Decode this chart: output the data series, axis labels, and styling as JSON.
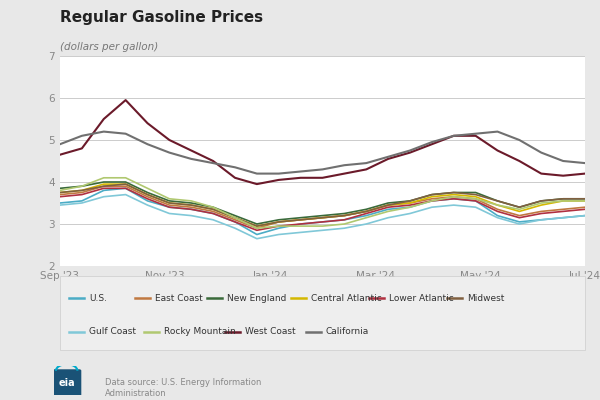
{
  "title": "Regular Gasoline Prices",
  "ylabel": "(dollars per gallon)",
  "ylim": [
    2,
    7
  ],
  "yticks": [
    2,
    3,
    4,
    5,
    6,
    7
  ],
  "x_labels": [
    "Sep '23",
    "Nov '23",
    "Jan '24",
    "Mar '24",
    "May '24",
    "Jul '24"
  ],
  "x_positions": [
    0,
    2,
    4,
    6,
    8,
    10
  ],
  "background_color": "#e8e8e8",
  "plot_bg_color": "#ffffff",
  "series": {
    "U.S.": {
      "color": "#4bacc6",
      "lw": 1.2,
      "data": [
        3.5,
        3.55,
        3.8,
        3.85,
        3.55,
        3.4,
        3.35,
        3.25,
        3.05,
        2.75,
        2.9,
        3.0,
        3.05,
        3.1,
        3.2,
        3.35,
        3.4,
        3.55,
        3.6,
        3.55,
        3.2,
        3.05,
        3.1,
        3.15,
        3.2
      ]
    },
    "East Coast": {
      "color": "#c07840",
      "lw": 1.2,
      "data": [
        3.7,
        3.75,
        3.9,
        3.9,
        3.65,
        3.45,
        3.4,
        3.3,
        3.1,
        2.9,
        3.05,
        3.1,
        3.15,
        3.2,
        3.3,
        3.45,
        3.5,
        3.6,
        3.65,
        3.6,
        3.35,
        3.2,
        3.3,
        3.35,
        3.4
      ]
    },
    "New England": {
      "color": "#3a6a3a",
      "lw": 1.2,
      "data": [
        3.85,
        3.9,
        4.0,
        4.0,
        3.75,
        3.55,
        3.5,
        3.4,
        3.2,
        3.0,
        3.1,
        3.15,
        3.2,
        3.25,
        3.35,
        3.5,
        3.55,
        3.7,
        3.75,
        3.75,
        3.55,
        3.4,
        3.55,
        3.6,
        3.6
      ]
    },
    "Central Atlantic": {
      "color": "#d4b800",
      "lw": 1.2,
      "data": [
        3.75,
        3.8,
        3.95,
        3.95,
        3.7,
        3.5,
        3.45,
        3.35,
        3.15,
        2.95,
        3.05,
        3.1,
        3.15,
        3.2,
        3.3,
        3.45,
        3.5,
        3.65,
        3.7,
        3.65,
        3.45,
        3.3,
        3.45,
        3.55,
        3.55
      ]
    },
    "Lower Atlantic": {
      "color": "#b03040",
      "lw": 1.2,
      "data": [
        3.65,
        3.7,
        3.85,
        3.85,
        3.6,
        3.4,
        3.35,
        3.25,
        3.05,
        2.85,
        2.95,
        3.0,
        3.05,
        3.1,
        3.25,
        3.4,
        3.45,
        3.55,
        3.6,
        3.55,
        3.3,
        3.15,
        3.25,
        3.3,
        3.35
      ]
    },
    "Midwest": {
      "color": "#806040",
      "lw": 1.2,
      "data": [
        3.75,
        3.8,
        3.9,
        3.95,
        3.7,
        3.5,
        3.45,
        3.35,
        3.15,
        2.95,
        3.05,
        3.1,
        3.15,
        3.2,
        3.3,
        3.45,
        3.55,
        3.7,
        3.75,
        3.7,
        3.55,
        3.4,
        3.55,
        3.6,
        3.6
      ]
    },
    "Gulf Coast": {
      "color": "#80c8d8",
      "lw": 1.2,
      "data": [
        3.45,
        3.5,
        3.65,
        3.7,
        3.45,
        3.25,
        3.2,
        3.1,
        2.9,
        2.65,
        2.75,
        2.8,
        2.85,
        2.9,
        3.0,
        3.15,
        3.25,
        3.4,
        3.45,
        3.4,
        3.15,
        3.0,
        3.1,
        3.15,
        3.2
      ]
    },
    "Rocky Mountain": {
      "color": "#b0c870",
      "lw": 1.2,
      "data": [
        3.8,
        3.9,
        4.1,
        4.1,
        3.85,
        3.6,
        3.55,
        3.4,
        3.15,
        2.9,
        2.95,
        2.95,
        2.95,
        3.0,
        3.15,
        3.3,
        3.4,
        3.55,
        3.65,
        3.6,
        3.45,
        3.35,
        3.5,
        3.55,
        3.55
      ]
    },
    "West Coast": {
      "color": "#6b1a2a",
      "lw": 1.5,
      "data": [
        4.65,
        4.8,
        5.5,
        5.95,
        5.4,
        5.0,
        4.75,
        4.5,
        4.1,
        3.95,
        4.05,
        4.1,
        4.1,
        4.2,
        4.3,
        4.55,
        4.7,
        4.9,
        5.1,
        5.1,
        4.75,
        4.5,
        4.2,
        4.15,
        4.2
      ]
    },
    "California": {
      "color": "#707070",
      "lw": 1.5,
      "data": [
        4.9,
        5.1,
        5.2,
        5.15,
        4.9,
        4.7,
        4.55,
        4.45,
        4.35,
        4.2,
        4.2,
        4.25,
        4.3,
        4.4,
        4.45,
        4.6,
        4.75,
        4.95,
        5.1,
        5.15,
        5.2,
        5.0,
        4.7,
        4.5,
        4.45
      ]
    }
  },
  "legend_row1": [
    "U.S.",
    "East Coast",
    "New England",
    "Central Atlantic",
    "Lower Atlantic",
    "Midwest"
  ],
  "legend_row2": [
    "Gulf Coast",
    "Rocky Mountain",
    "West Coast",
    "California"
  ],
  "footer_text1": "Data source: U.S. Energy Information",
  "footer_text2": "Administration"
}
